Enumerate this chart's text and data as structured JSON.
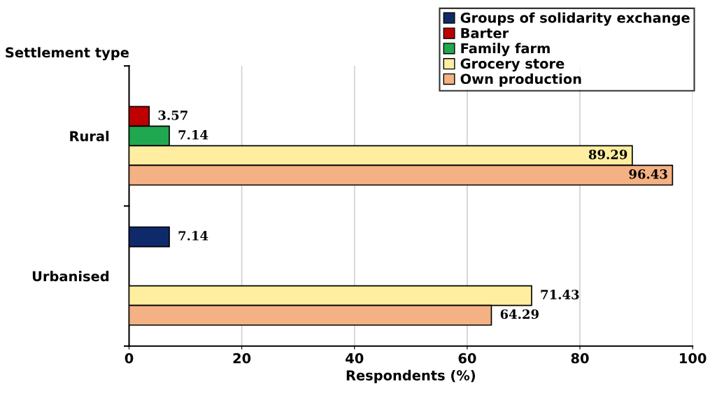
{
  "chart_data": {
    "type": "bar",
    "orientation": "horizontal",
    "ylabel": "Settlement type",
    "xlabel": "Respondents (%)",
    "categories": [
      "Rural",
      "Urbanised"
    ],
    "series": [
      {
        "name": "Groups of solidarity exchange",
        "color": "#0f2a6b",
        "values": [
          null,
          7.14
        ]
      },
      {
        "name": "Barter",
        "color": "#c00000",
        "values": [
          3.57,
          null
        ]
      },
      {
        "name": "Family farm",
        "color": "#1fa84f",
        "values": [
          7.14,
          null
        ]
      },
      {
        "name": "Grocery store",
        "color": "#ffeea0",
        "values": [
          89.29,
          71.43
        ]
      },
      {
        "name": "Own production",
        "color": "#f4b183",
        "values": [
          96.43,
          64.29
        ]
      }
    ],
    "xlim": [
      0,
      100
    ],
    "xticks": [
      0,
      20,
      40,
      60,
      80,
      100
    ],
    "grid": "x",
    "legend": "top right",
    "data_labels": true
  }
}
